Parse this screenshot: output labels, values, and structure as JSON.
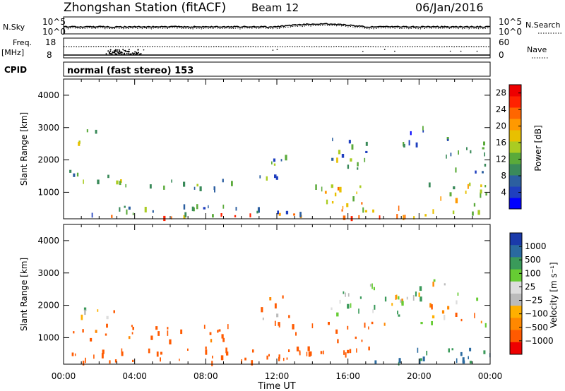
{
  "header": {
    "station": "Zhongshan Station (fitACF)",
    "beam": "Beam 12",
    "date": "06/Jan/2016"
  },
  "noise_panel": {
    "left_label": "N.Sky",
    "right_label": "N.Search",
    "left_ticks": [
      "10^5",
      "10^0"
    ],
    "right_ticks": [
      "10^5",
      "10^0"
    ]
  },
  "freq_panel": {
    "left_label_1": "Freq.",
    "left_label_2": "[MHz]",
    "right_label": "Nave",
    "left_ticks": [
      "18",
      "8"
    ],
    "right_ticks": [
      "60",
      "0"
    ]
  },
  "cpid": {
    "label": "CPID",
    "value": "normal (fast stereo) 153"
  },
  "colors": {
    "power_scale": [
      "#0000ff",
      "#1f3fbf",
      "#2c5fa0",
      "#3a8a5a",
      "#5aaa3a",
      "#aacc22",
      "#e8c000",
      "#ff9900",
      "#ff6600",
      "#ff2200",
      "#ee0000"
    ],
    "velocity_scale": [
      "#ee0000",
      "#ff5a00",
      "#ff8800",
      "#ffb000",
      "#bbbbbb",
      "#dddddd",
      "#66cc33",
      "#3a9a5a",
      "#2a6aa0",
      "#1a3aaa"
    ]
  },
  "chart_data": [
    {
      "type": "heatmap",
      "panel": "power",
      "xlabel": "",
      "ylabel": "Slant Range [km]",
      "yticks": [
        "1000",
        "2000",
        "3000",
        "4000"
      ],
      "ylim": [
        180,
        4500
      ],
      "xlim_hours": [
        0,
        24
      ],
      "colorbar_label": "Power [dB]",
      "colorbar_ticks": [
        "4",
        "8",
        "12",
        "16",
        "20",
        "24",
        "28"
      ],
      "colorbar_range": [
        0,
        30
      ],
      "echo_regions": [
        {
          "t0": 0.0,
          "t1": 24.0,
          "r0": 200,
          "r1": 320,
          "level": 22
        },
        {
          "t0": 0.3,
          "t1": 13.5,
          "r0": 280,
          "r1": 600,
          "level": 9
        },
        {
          "t0": 0.3,
          "t1": 9.5,
          "r0": 1050,
          "r1": 1380,
          "level": 12
        },
        {
          "t0": 0.2,
          "t1": 3.0,
          "r0": 1380,
          "r1": 1650,
          "level": 6
        },
        {
          "t0": 0.8,
          "t1": 1.8,
          "r0": 2450,
          "r1": 3100,
          "level": 10
        },
        {
          "t0": 10.5,
          "t1": 12.5,
          "r0": 1400,
          "r1": 2300,
          "level": 9
        },
        {
          "t0": 14.0,
          "t1": 17.5,
          "r0": 300,
          "r1": 1300,
          "level": 18
        },
        {
          "t0": 15.0,
          "t1": 17.5,
          "r0": 1700,
          "r1": 2700,
          "level": 10
        },
        {
          "t0": 17.5,
          "t1": 19.5,
          "r0": 200,
          "r1": 600,
          "level": 20
        },
        {
          "t0": 18.8,
          "t1": 20.2,
          "r0": 2200,
          "r1": 3100,
          "level": 7
        },
        {
          "t0": 20.5,
          "t1": 23.8,
          "r0": 300,
          "r1": 1300,
          "level": 14
        },
        {
          "t0": 21.5,
          "t1": 23.8,
          "r0": 1600,
          "r1": 2700,
          "level": 8
        }
      ]
    },
    {
      "type": "heatmap",
      "panel": "velocity",
      "xlabel": "Time UT",
      "ylabel": "Slant Range [km]",
      "xticks": [
        "00:00",
        "04:00",
        "08:00",
        "12:00",
        "16:00",
        "20:00",
        "00:00"
      ],
      "yticks": [
        "1000",
        "2000",
        "3000",
        "4000"
      ],
      "ylim": [
        180,
        4500
      ],
      "xlim_hours": [
        0,
        24
      ],
      "colorbar_label": "Velocity [m s⁻¹]",
      "colorbar_ticks": [
        "1000",
        "500",
        "100",
        "25",
        "−25",
        "−100",
        "−500",
        "−1000"
      ],
      "echo_regions": [
        {
          "t0": 0.2,
          "t1": 13.5,
          "r0": 200,
          "r1": 700,
          "velocity": -300
        },
        {
          "t0": 0.5,
          "t1": 9.5,
          "r0": 900,
          "r1": 1400,
          "velocity": -200
        },
        {
          "t0": 0.2,
          "t1": 3.5,
          "r0": 1600,
          "r1": 1900,
          "velocity": 0
        },
        {
          "t0": 11.0,
          "t1": 13.0,
          "r0": 1300,
          "r1": 2300,
          "velocity": -150
        },
        {
          "t0": 13.0,
          "t1": 17.5,
          "r0": 500,
          "r1": 1500,
          "velocity": -250
        },
        {
          "t0": 15.0,
          "t1": 17.5,
          "r0": 1700,
          "r1": 2800,
          "velocity": 10
        },
        {
          "t0": 17.0,
          "t1": 24.0,
          "r0": 200,
          "r1": 700,
          "velocity": 300
        },
        {
          "t0": 18.0,
          "t1": 23.8,
          "r0": 1400,
          "r1": 2400,
          "velocity": 0
        },
        {
          "t0": 19.5,
          "t1": 21.5,
          "r0": 2500,
          "r1": 2900,
          "velocity": 5
        }
      ]
    }
  ]
}
